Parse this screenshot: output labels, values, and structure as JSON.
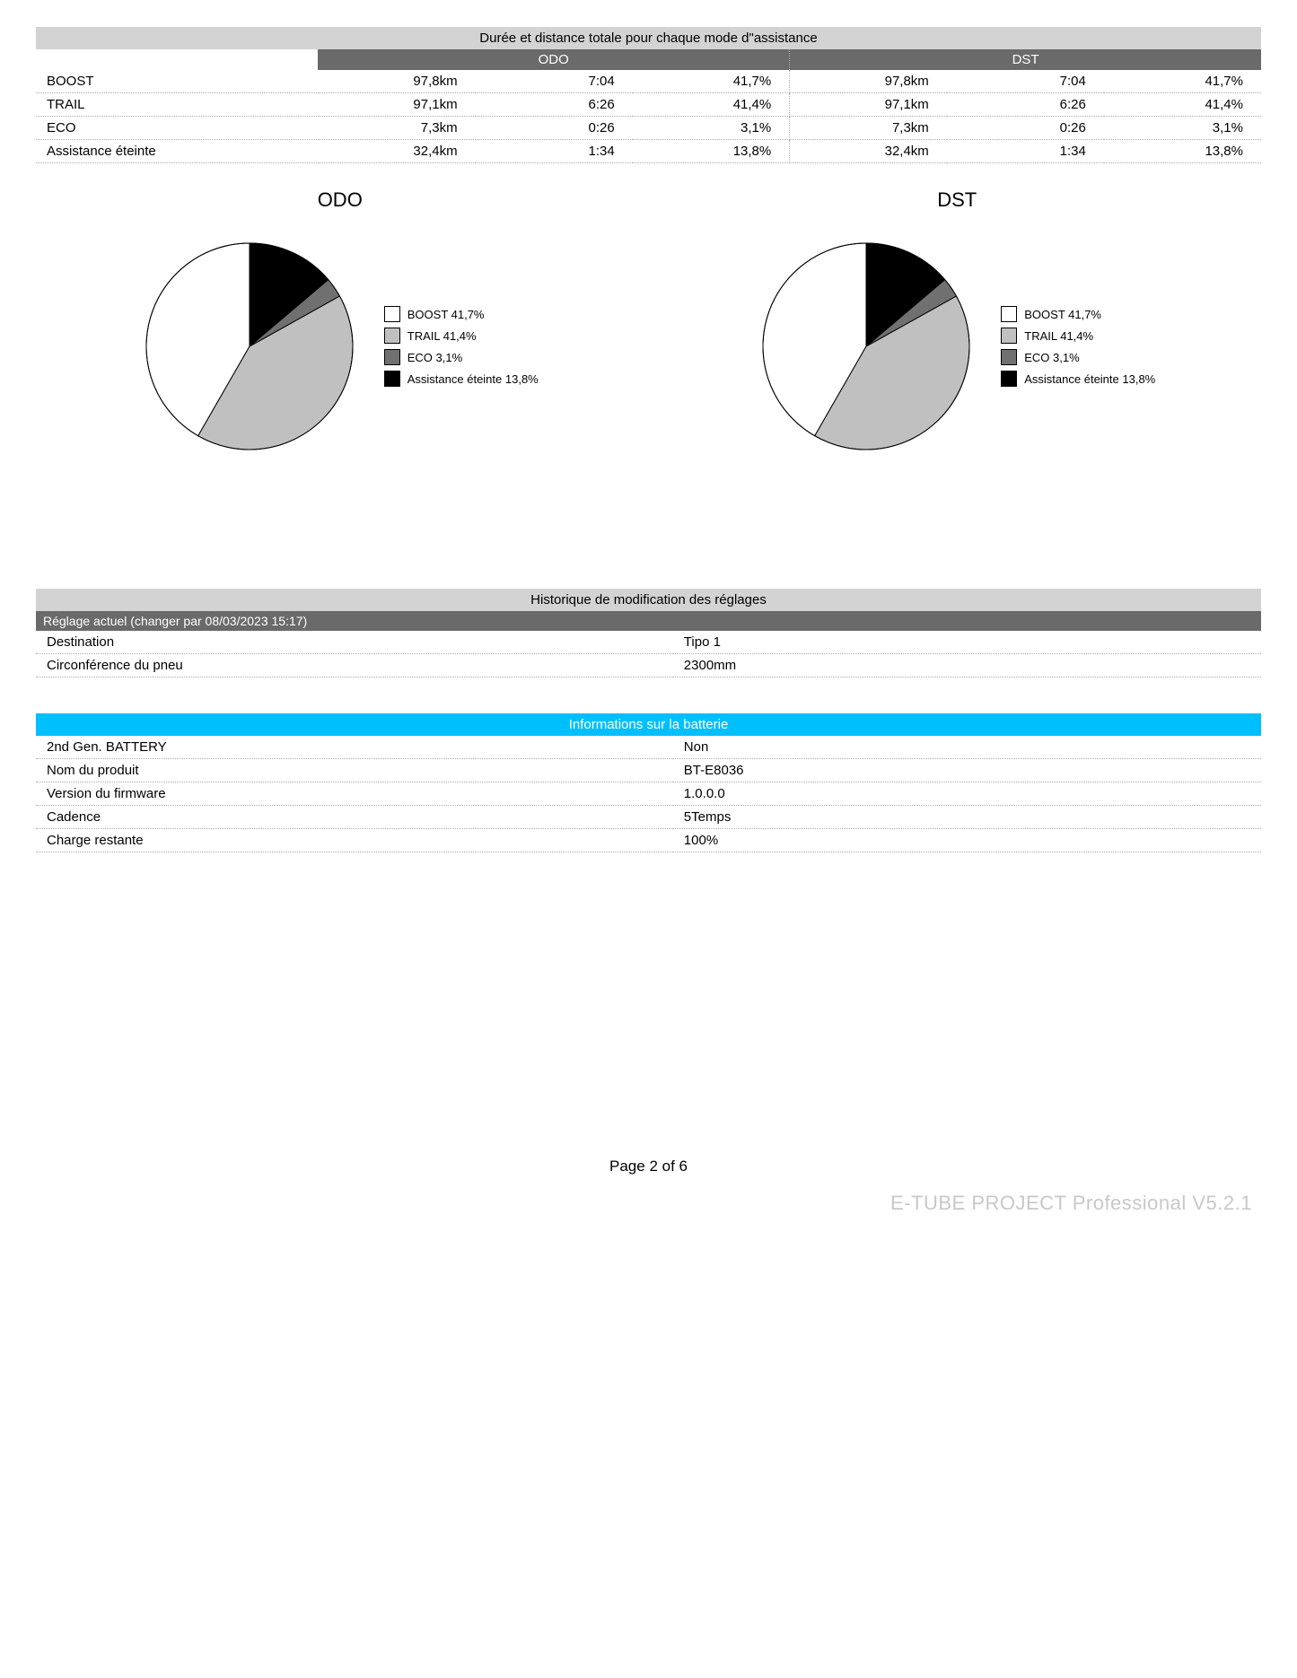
{
  "assist_mode": {
    "title": "Durée et distance totale pour chaque mode d\"assistance",
    "col_headers": [
      "ODO",
      "DST"
    ],
    "rows": [
      {
        "label": "BOOST",
        "odo_dist": "97,8km",
        "odo_time": "7:04",
        "odo_pct": "41,7%",
        "dst_dist": "97,8km",
        "dst_time": "7:04",
        "dst_pct": "41,7%"
      },
      {
        "label": "TRAIL",
        "odo_dist": "97,1km",
        "odo_time": "6:26",
        "odo_pct": "41,4%",
        "dst_dist": "97,1km",
        "dst_time": "6:26",
        "dst_pct": "41,4%"
      },
      {
        "label": "ECO",
        "odo_dist": "7,3km",
        "odo_time": "0:26",
        "odo_pct": "3,1%",
        "dst_dist": "7,3km",
        "dst_time": "0:26",
        "dst_pct": "3,1%"
      },
      {
        "label": "Assistance éteinte",
        "odo_dist": "32,4km",
        "odo_time": "1:34",
        "odo_pct": "13,8%",
        "dst_dist": "32,4km",
        "dst_time": "1:34",
        "dst_pct": "13,8%"
      }
    ]
  },
  "pies": {
    "odo": {
      "title": "ODO",
      "slices": [
        {
          "label": "BOOST 41,7%",
          "value": 41.7,
          "color": "#ffffff",
          "stroke": "#000"
        },
        {
          "label": "TRAIL 41,4%",
          "value": 41.4,
          "color": "#c0c0c0",
          "stroke": "#000"
        },
        {
          "label": "ECO 3,1%",
          "value": 3.1,
          "color": "#707070",
          "stroke": "#000"
        },
        {
          "label": "Assistance éteinte 13,8%",
          "value": 13.8,
          "color": "#000000",
          "stroke": "#000"
        }
      ],
      "start_angle_deg": -90,
      "radius": 115
    },
    "dst": {
      "title": "DST",
      "slices": [
        {
          "label": "BOOST 41,7%",
          "value": 41.7,
          "color": "#ffffff",
          "stroke": "#000"
        },
        {
          "label": "TRAIL 41,4%",
          "value": 41.4,
          "color": "#c0c0c0",
          "stroke": "#000"
        },
        {
          "label": "ECO 3,1%",
          "value": 3.1,
          "color": "#707070",
          "stroke": "#000"
        },
        {
          "label": "Assistance éteinte 13,8%",
          "value": 13.8,
          "color": "#000000",
          "stroke": "#000"
        }
      ],
      "start_angle_deg": -90,
      "radius": 115
    }
  },
  "history": {
    "title": "Historique de modification des réglages",
    "subtitle": "Réglage actuel (changer par 08/03/2023 15:17)",
    "rows": [
      {
        "k": "Destination",
        "v": "Tipo 1"
      },
      {
        "k": "Circonférence du pneu",
        "v": "2300mm"
      }
    ]
  },
  "battery": {
    "title": "Informations sur la batterie",
    "rows": [
      {
        "k": "2nd Gen. BATTERY",
        "v": "Non"
      },
      {
        "k": "Nom du produit",
        "v": "BT-E8036"
      },
      {
        "k": "Version du firmware",
        "v": "1.0.0.0"
      },
      {
        "k": "Cadence",
        "v": "5Temps"
      },
      {
        "k": "Charge restante",
        "v": "100%"
      }
    ]
  },
  "footer": {
    "page": "Page 2 of 6",
    "watermark": "E-TUBE PROJECT Professional V5.2.1"
  }
}
